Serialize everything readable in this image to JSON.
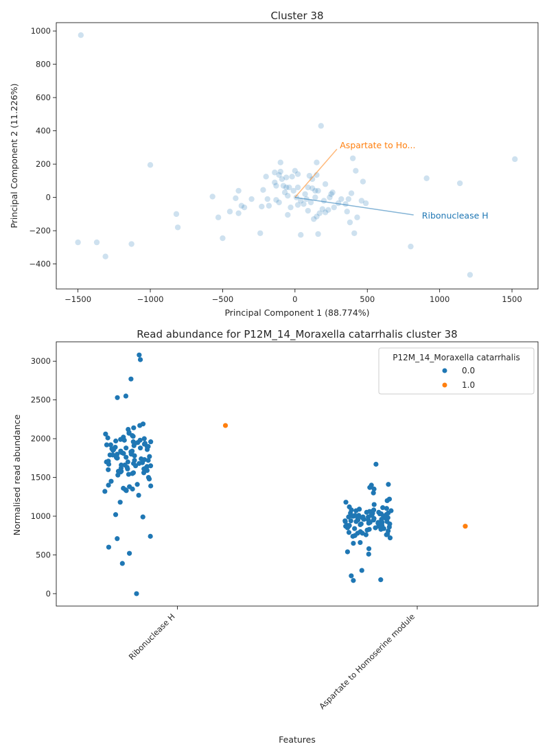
{
  "chart_data": [
    {
      "type": "scatter",
      "title": "Cluster 38",
      "xlabel": "Principal Component 1 (88.774%)",
      "ylabel": "Principal Component 2 (11.226%)",
      "xlim": [
        -1650,
        1680
      ],
      "ylim": [
        -550,
        1050
      ],
      "xticks": [
        -1500,
        -1000,
        -500,
        0,
        500,
        1000,
        1500
      ],
      "yticks": [
        -400,
        -200,
        0,
        200,
        400,
        600,
        800,
        1000
      ],
      "grid": false,
      "point_color": "#1f77b4",
      "points": [
        [
          -1480,
          975
        ],
        [
          -1000,
          195
        ],
        [
          -1500,
          -270
        ],
        [
          -1370,
          -270
        ],
        [
          -1310,
          -355
        ],
        [
          -1130,
          -280
        ],
        [
          -820,
          -100
        ],
        [
          -810,
          -180
        ],
        [
          -570,
          5
        ],
        [
          -530,
          -120
        ],
        [
          -500,
          -245
        ],
        [
          -450,
          -85
        ],
        [
          -410,
          -5
        ],
        [
          -390,
          -95
        ],
        [
          -390,
          40
        ],
        [
          -370,
          -50
        ],
        [
          -350,
          -60
        ],
        [
          -300,
          -10
        ],
        [
          -240,
          -215
        ],
        [
          -230,
          -55
        ],
        [
          -220,
          45
        ],
        [
          -200,
          125
        ],
        [
          -190,
          -10
        ],
        [
          -180,
          -50
        ],
        [
          -140,
          150
        ],
        [
          -140,
          90
        ],
        [
          -130,
          70
        ],
        [
          -130,
          -15
        ],
        [
          -110,
          135
        ],
        [
          -110,
          -30
        ],
        [
          -100,
          210
        ],
        [
          -100,
          155
        ],
        [
          -90,
          110
        ],
        [
          -80,
          70
        ],
        [
          -70,
          30
        ],
        [
          -60,
          120
        ],
        [
          -60,
          60
        ],
        [
          -50,
          10
        ],
        [
          -50,
          -105
        ],
        [
          -40,
          60
        ],
        [
          -30,
          -60
        ],
        [
          -20,
          125
        ],
        [
          -10,
          40
        ],
        [
          0,
          160
        ],
        [
          10,
          0
        ],
        [
          20,
          60
        ],
        [
          20,
          140
        ],
        [
          20,
          -45
        ],
        [
          40,
          -20
        ],
        [
          40,
          -225
        ],
        [
          60,
          -40
        ],
        [
          70,
          20
        ],
        [
          80,
          -10
        ],
        [
          90,
          60
        ],
        [
          90,
          -80
        ],
        [
          100,
          130
        ],
        [
          110,
          -30
        ],
        [
          120,
          55
        ],
        [
          120,
          110
        ],
        [
          130,
          -130
        ],
        [
          140,
          40
        ],
        [
          140,
          0
        ],
        [
          150,
          210
        ],
        [
          150,
          -115
        ],
        [
          150,
          135
        ],
        [
          160,
          -220
        ],
        [
          160,
          40
        ],
        [
          170,
          -95
        ],
        [
          180,
          430
        ],
        [
          190,
          -70
        ],
        [
          200,
          -20
        ],
        [
          210,
          80
        ],
        [
          210,
          -90
        ],
        [
          230,
          -75
        ],
        [
          240,
          0
        ],
        [
          250,
          20
        ],
        [
          260,
          30
        ],
        [
          270,
          -60
        ],
        [
          300,
          -35
        ],
        [
          320,
          -10
        ],
        [
          350,
          -40
        ],
        [
          360,
          -85
        ],
        [
          370,
          -10
        ],
        [
          380,
          -150
        ],
        [
          390,
          25
        ],
        [
          400,
          235
        ],
        [
          410,
          -215
        ],
        [
          420,
          160
        ],
        [
          430,
          -120
        ],
        [
          460,
          -20
        ],
        [
          470,
          95
        ],
        [
          490,
          -35
        ],
        [
          800,
          -295
        ],
        [
          910,
          115
        ],
        [
          1140,
          85
        ],
        [
          1210,
          -465
        ],
        [
          1520,
          230
        ]
      ],
      "loadings": [
        {
          "name": "Aspartate to Ho...",
          "x": 290,
          "y": 290,
          "color": "#ff7f0e"
        },
        {
          "name": "Ribonuclease H",
          "x": 820,
          "y": -105,
          "color": "#1f77b4"
        }
      ]
    },
    {
      "type": "strip",
      "title": "Read abundance for P12M_14_Moraxella catarrhalis cluster 38",
      "xlabel": "Features",
      "ylabel": "Normalised read abundance",
      "categories": [
        "Ribonuclease H",
        "Aspartate to Homoserine module"
      ],
      "ylim": [
        -160,
        3250
      ],
      "yticks": [
        0,
        500,
        1000,
        1500,
        2000,
        2500,
        3000
      ],
      "legend": {
        "title": "P12M_14_Moraxella catarrhalis",
        "placement": "upper right",
        "entries": [
          {
            "label": "0.0",
            "color": "#1f77b4"
          },
          {
            "label": "1.0",
            "color": "#ff7f0e"
          }
        ]
      },
      "series": [
        {
          "name": "0.0",
          "color": "#1f77b4",
          "values": [
            [
              3080,
              2770,
              2550,
              2530,
              2190,
              2170,
              2120,
              2080,
              2070,
              2060,
              2040,
              2030,
              2020,
              2000,
              1990,
              1980,
              1970,
              1960,
              1950,
              1940,
              1930,
              1920,
              1910,
              1900,
              1890,
              1880,
              1870,
              1860,
              1850,
              1840,
              1830,
              1820,
              1810,
              1800,
              1790,
              1780,
              1770,
              1760,
              1750,
              1740,
              1730,
              1720,
              1710,
              1700,
              1690,
              1680,
              1670,
              1660,
              1650,
              1640,
              1630,
              1620,
              1610,
              1600,
              1590,
              1580,
              1570,
              1560,
              1550,
              1540,
              1530,
              1500,
              1480,
              1450,
              1410,
              1400,
              1390,
              1380,
              1360,
              1350,
              1340,
              1330,
              1320,
              1270,
              1180,
              1020,
              990,
              740,
              710,
              600,
              520,
              390,
              0,
              3020,
              2140,
              1960,
              1920,
              1880,
              1830,
              1790,
              1750,
              1720,
              1680,
              1650,
              1610,
              1580,
              1560,
              1760,
              1800,
              1840,
              1700,
              1660,
              1620,
              1860,
              1900,
              1940,
              1980,
              2010
            ],
            [
              1670,
              1410,
              1400,
              1370,
              1350,
              1300,
              1220,
              1200,
              1180,
              1110,
              1100,
              1090,
              1080,
              1070,
              1060,
              1050,
              1040,
              1030,
              1020,
              1010,
              1000,
              990,
              980,
              970,
              960,
              950,
              940,
              930,
              920,
              910,
              900,
              890,
              880,
              870,
              860,
              850,
              840,
              830,
              820,
              800,
              790,
              780,
              770,
              760,
              750,
              740,
              720,
              660,
              650,
              580,
              540,
              510,
              300,
              230,
              180,
              170,
              1060,
              1020,
              980,
              940,
              900,
              870,
              1040,
              1000,
              960,
              920,
              880,
              840,
              810,
              1090,
              1050,
              1010,
              970,
              930,
              890,
              850,
              1070,
              1030,
              990,
              950,
              910,
              870,
              830,
              1080,
              1040,
              1000,
              960,
              920,
              880,
              1010,
              990,
              970,
              950,
              930,
              910,
              1120,
              780,
              760,
              1150
            ]
          ]
        },
        {
          "name": "1.0",
          "color": "#ff7f0e",
          "values": [
            [
              2170
            ],
            [
              870
            ]
          ]
        }
      ]
    }
  ]
}
